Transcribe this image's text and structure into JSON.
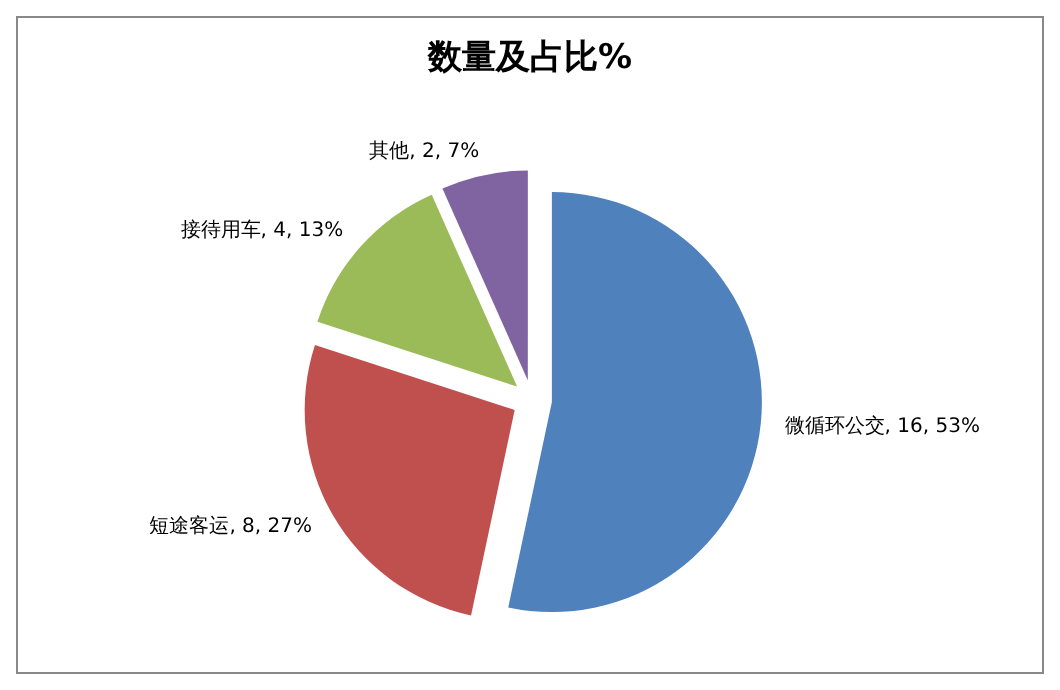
{
  "chart_data": {
    "type": "pie",
    "title": "数量及占比%",
    "categories": [
      "微循环公交",
      "短途客运",
      "接待用车",
      "其他"
    ],
    "values": [
      16,
      8,
      4,
      2
    ],
    "value_labels": [
      "16, 53%",
      "8, 27%",
      "4, 13%",
      "2, 7%"
    ],
    "colors": [
      "#4f81bd",
      "#c0504d",
      "#9bbb59",
      "#8064a2"
    ]
  }
}
